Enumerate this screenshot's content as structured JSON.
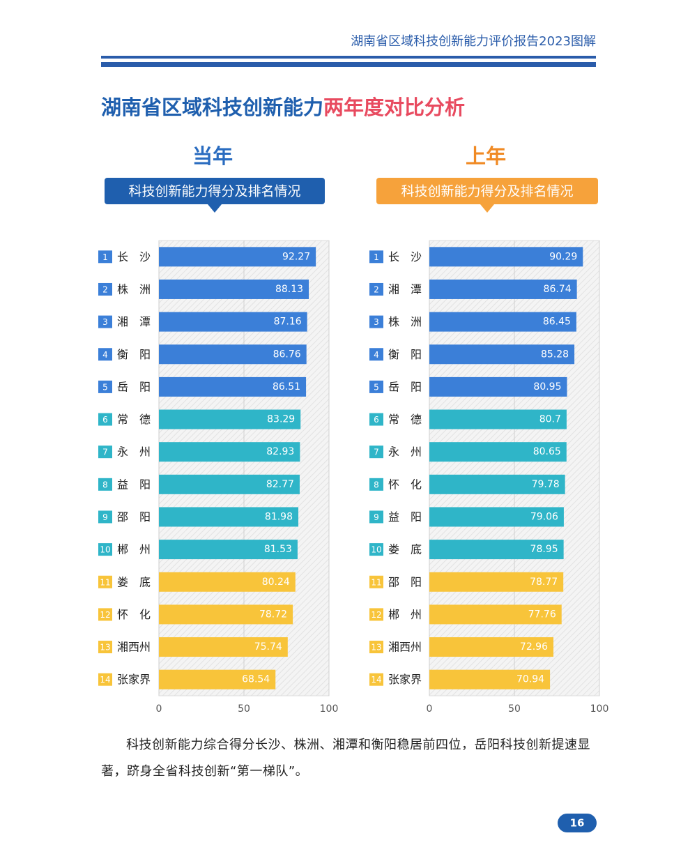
{
  "header": "湖南省区域科技创新能力评价报告2023图解",
  "title_parts": [
    "湖南省区域科技创新能力",
    "两年度对比分析"
  ],
  "chart_data": [
    {
      "type": "bar",
      "orientation": "horizontal",
      "title": "当年",
      "subtitle": "科技创新能力得分及排名情况",
      "ranks": [
        1,
        2,
        3,
        4,
        5,
        6,
        7,
        8,
        9,
        10,
        11,
        12,
        13,
        14
      ],
      "categories": [
        "长沙",
        "株洲",
        "湘潭",
        "衡阳",
        "岳阳",
        "常德",
        "永州",
        "益阳",
        "邵阳",
        "郴州",
        "娄底",
        "怀化",
        "湘西州",
        "张家界"
      ],
      "values": [
        92.27,
        88.13,
        87.16,
        86.76,
        86.51,
        83.29,
        82.93,
        82.77,
        81.98,
        81.53,
        80.24,
        78.72,
        75.74,
        68.54
      ],
      "colors": [
        "#3b7fd8",
        "#3b7fd8",
        "#3b7fd8",
        "#3b7fd8",
        "#3b7fd8",
        "#2fb5c8",
        "#2fb5c8",
        "#2fb5c8",
        "#2fb5c8",
        "#2fb5c8",
        "#f8c43a",
        "#f8c43a",
        "#f8c43a",
        "#f8c43a"
      ],
      "xlim": [
        0,
        100
      ],
      "xticks": [
        0,
        50,
        100
      ],
      "grid": true
    },
    {
      "type": "bar",
      "orientation": "horizontal",
      "title": "上年",
      "subtitle": "科技创新能力得分及排名情况",
      "ranks": [
        1,
        2,
        3,
        4,
        5,
        6,
        7,
        8,
        9,
        10,
        11,
        12,
        13,
        14
      ],
      "categories": [
        "长沙",
        "湘潭",
        "株洲",
        "衡阳",
        "岳阳",
        "常德",
        "永州",
        "怀化",
        "益阳",
        "娄底",
        "邵阳",
        "郴州",
        "湘西州",
        "张家界"
      ],
      "values": [
        90.29,
        86.74,
        86.45,
        85.28,
        80.95,
        80.7,
        80.65,
        79.78,
        79.06,
        78.95,
        78.77,
        77.76,
        72.96,
        70.94
      ],
      "colors": [
        "#3b7fd8",
        "#3b7fd8",
        "#3b7fd8",
        "#3b7fd8",
        "#3b7fd8",
        "#2fb5c8",
        "#2fb5c8",
        "#2fb5c8",
        "#2fb5c8",
        "#2fb5c8",
        "#f8c43a",
        "#f8c43a",
        "#f8c43a",
        "#f8c43a"
      ],
      "xlim": [
        0,
        100
      ],
      "xticks": [
        0,
        50,
        100
      ],
      "grid": true
    }
  ],
  "paragraph": "科技创新能力综合得分长沙、株洲、湘潭和衡阳稳居前四位，岳阳科技创新提速显著，跻身全省科技创新“第一梯队”。",
  "page_number": "16"
}
